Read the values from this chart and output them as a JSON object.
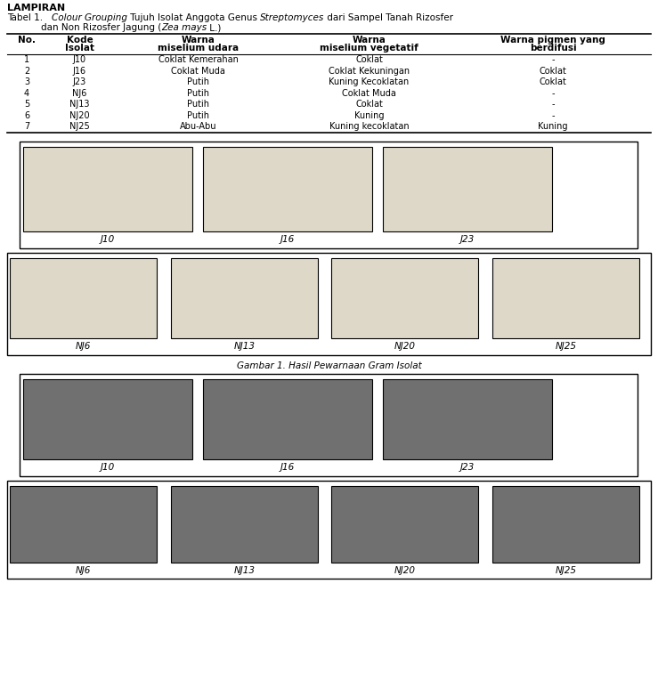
{
  "title_label": "LAMPIRAN",
  "col_headers": [
    [
      "No.",
      ""
    ],
    [
      "Kode",
      "Isolat"
    ],
    [
      "Warna",
      "miselium udara"
    ],
    [
      "Warna",
      "miselium vegetatif"
    ],
    [
      "Warna pigmen yang",
      "berdifusi"
    ]
  ],
  "rows": [
    [
      "1",
      "J10",
      "Coklat Kemerahan",
      "Coklat",
      "-"
    ],
    [
      "2",
      "J16",
      "Coklat Muda",
      "Coklat Kekuningan",
      "Coklat"
    ],
    [
      "3",
      "J23",
      "Putih",
      "Kuning Kecoklatan",
      "Coklat"
    ],
    [
      "4",
      "NJ6",
      "Putih",
      "Coklat Muda",
      "-"
    ],
    [
      "5",
      "NJ13",
      "Putih",
      "Coklat",
      "-"
    ],
    [
      "6",
      "NJ20",
      "Putih",
      "Kuning",
      "-"
    ],
    [
      "7",
      "NJ25",
      "Abu-Abu",
      "Kuning kecoklatan",
      "Kuning"
    ]
  ],
  "row1_labels": [
    "J10",
    "J16",
    "J23"
  ],
  "row2_labels": [
    "NJ6",
    "NJ13",
    "NJ20",
    "NJ25"
  ],
  "gambar_title": "Gambar 1. Hasil Pewarnaan Gram Isolat",
  "sem_row1_labels": [
    "J10",
    "J16",
    "J23"
  ],
  "sem_row2_labels": [
    "NJ6",
    "NJ13",
    "NJ20",
    "NJ25"
  ],
  "bg_color": "#ffffff",
  "text_color": "#000000",
  "fs": 7.5
}
